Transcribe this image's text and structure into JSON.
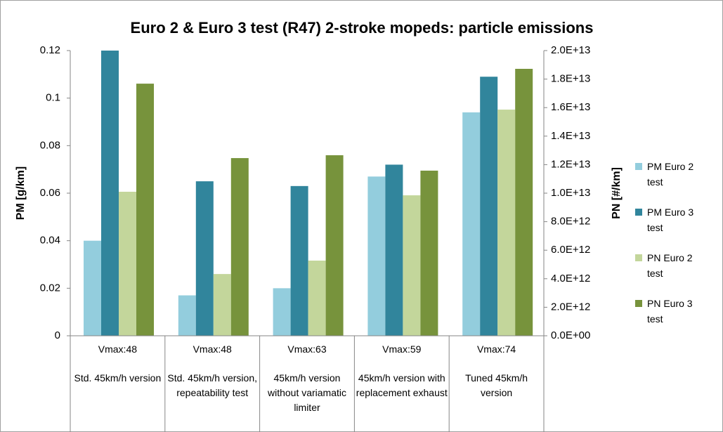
{
  "chart_data": {
    "type": "bar",
    "title": "Euro 2 & Euro 3 test (R47) 2-stroke mopeds: particle emissions",
    "y_label": "PM [g/km]",
    "y2_label": "PN [#/km]",
    "categories": [
      "Vmax:48",
      "Vmax:48",
      "Vmax:63",
      "Vmax:59",
      "Vmax:74"
    ],
    "subcategories": [
      "Std. 45km/h version",
      "Std. 45km/h version, repeatability test",
      "45km/h version without variamatic limiter",
      "45km/h version with replacement exhaust",
      "Tuned 45km/h version"
    ],
    "series": [
      {
        "name": "PM Euro 2 test",
        "color": "#93cddd",
        "values": [
          0.04,
          0.017,
          0.02,
          0.067,
          0.094
        ]
      },
      {
        "name": "PM Euro 3 test",
        "color": "#31859c",
        "values": [
          0.12,
          0.065,
          0.063,
          0.072,
          0.109
        ]
      },
      {
        "name": "PN Euro 2 test",
        "color": "#c3d69b",
        "axis": "y2",
        "values": [
          10100000000000.0,
          4330000000000.0,
          5270000000000.0,
          9850000000000.0,
          15860000000000.0
        ]
      },
      {
        "name": "PN Euro 3 test",
        "color": "#77933c",
        "axis": "y2",
        "values": [
          17680000000000.0,
          12460000000000.0,
          12660000000000.0,
          11580000000000.0,
          18720000000000.0
        ]
      }
    ],
    "ylim": [
      0,
      0.12
    ],
    "yticks": [
      0,
      0.02,
      0.04,
      0.06,
      0.08,
      0.1,
      0.12
    ],
    "y2lim": [
      0,
      20000000000000.0
    ],
    "y2ticks": [
      {
        "value": 0,
        "label": "0.0E+00"
      },
      {
        "value": 2000000000000.0,
        "label": "2.0E+12"
      },
      {
        "value": 4000000000000.0,
        "label": "4.0E+12"
      },
      {
        "value": 6000000000000.0,
        "label": "6.0E+12"
      },
      {
        "value": 8000000000000.0,
        "label": "8.0E+12"
      },
      {
        "value": 10000000000000.0,
        "label": "1.0E+13"
      },
      {
        "value": 12000000000000.0,
        "label": "1.2E+13"
      },
      {
        "value": 14000000000000.0,
        "label": "1.4E+13"
      },
      {
        "value": 16000000000000.0,
        "label": "1.6E+13"
      },
      {
        "value": 18000000000000.0,
        "label": "1.8E+13"
      },
      {
        "value": 20000000000000.0,
        "label": "2.0E+13"
      }
    ],
    "grid": false,
    "legend": "right"
  }
}
